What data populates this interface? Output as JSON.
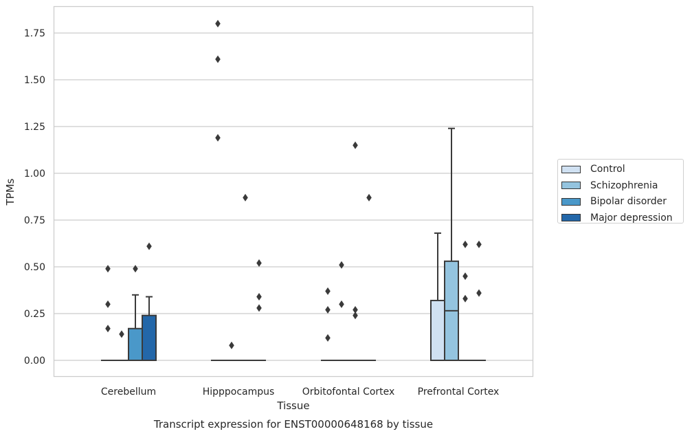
{
  "chart_data": {
    "type": "box",
    "title": "Transcript expression for ENST00000648168 by tissue",
    "xlabel": "Tissue",
    "ylabel": "TPMs",
    "ylim": [
      -0.09,
      1.89
    ],
    "yticks": [
      "0.00",
      "0.25",
      "0.50",
      "0.75",
      "1.00",
      "1.25",
      "1.50",
      "1.75"
    ],
    "categories": [
      "Cerebellum",
      "Hipppocampus",
      "Orbitofontal Cortex",
      "Prefrontal Cortex"
    ],
    "grid": "horizontal",
    "legend_position": "right",
    "series": [
      {
        "name": "Control",
        "color": "#d0e1f2",
        "boxes": [
          {
            "q1": 0,
            "median": 0,
            "q3": 0,
            "whislo": 0,
            "whishi": 0,
            "fliers": [
              0.49,
              0.3,
              0.17
            ]
          },
          {
            "q1": 0,
            "median": 0,
            "q3": 0,
            "whislo": 0,
            "whishi": 0,
            "fliers": [
              1.8,
              1.61,
              1.19
            ]
          },
          {
            "q1": 0,
            "median": 0,
            "q3": 0,
            "whislo": 0,
            "whishi": 0,
            "fliers": [
              0.37,
              0.27,
              0.12
            ]
          },
          {
            "q1": 0,
            "median": 0,
            "q3": 0.32,
            "whislo": 0,
            "whishi": 0.68,
            "fliers": []
          }
        ]
      },
      {
        "name": "Schizophrenia",
        "color": "#94c4df",
        "boxes": [
          {
            "q1": 0,
            "median": 0,
            "q3": 0,
            "whislo": 0,
            "whishi": 0,
            "fliers": [
              0.14
            ]
          },
          {
            "q1": 0,
            "median": 0,
            "q3": 0,
            "whislo": 0,
            "whishi": 0,
            "fliers": [
              0.08
            ]
          },
          {
            "q1": 0,
            "median": 0,
            "q3": 0,
            "whislo": 0,
            "whishi": 0,
            "fliers": [
              0.51,
              0.3
            ]
          },
          {
            "q1": 0,
            "median": 0.265,
            "q3": 0.53,
            "whislo": 0,
            "whishi": 1.24,
            "fliers": []
          }
        ]
      },
      {
        "name": "Bipolar disorder",
        "color": "#4a98c9",
        "boxes": [
          {
            "q1": 0,
            "median": 0,
            "q3": 0.17,
            "whislo": 0,
            "whishi": 0.35,
            "fliers": [
              0.49
            ]
          },
          {
            "q1": 0,
            "median": 0,
            "q3": 0,
            "whislo": 0,
            "whishi": 0,
            "fliers": [
              0.87
            ]
          },
          {
            "q1": 0,
            "median": 0,
            "q3": 0,
            "whislo": 0,
            "whishi": 0,
            "fliers": [
              1.15,
              0.27,
              0.24
            ]
          },
          {
            "q1": 0,
            "median": 0,
            "q3": 0,
            "whislo": 0,
            "whishi": 0,
            "fliers": [
              0.62,
              0.45,
              0.33
            ]
          }
        ]
      },
      {
        "name": "Major depression",
        "color": "#2367a9",
        "boxes": [
          {
            "q1": 0,
            "median": 0,
            "q3": 0.24,
            "whislo": 0,
            "whishi": 0.34,
            "fliers": [
              0.61
            ]
          },
          {
            "q1": 0,
            "median": 0,
            "q3": 0,
            "whislo": 0,
            "whishi": 0,
            "fliers": [
              0.52,
              0.34,
              0.28
            ]
          },
          {
            "q1": 0,
            "median": 0,
            "q3": 0,
            "whislo": 0,
            "whishi": 0,
            "fliers": [
              0.87
            ]
          },
          {
            "q1": 0,
            "median": 0,
            "q3": 0,
            "whislo": 0,
            "whishi": 0,
            "fliers": [
              0.62,
              0.36
            ]
          }
        ]
      }
    ]
  }
}
